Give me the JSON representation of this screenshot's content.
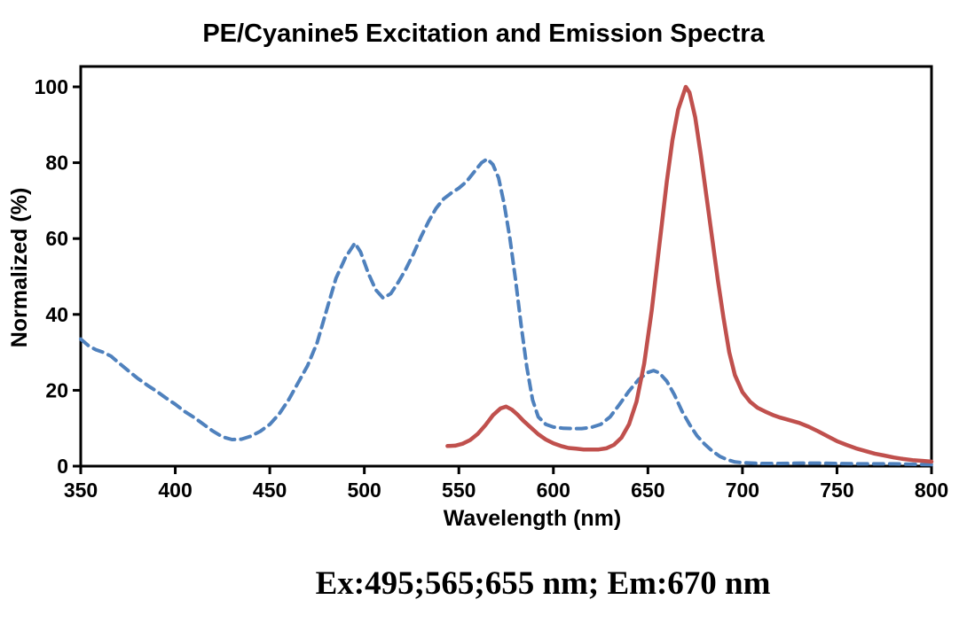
{
  "page": {
    "background": "#ffffff",
    "text_color": "#000000"
  },
  "annotation": "Ex:495;565;655 nm; Em:670 nm",
  "chart_data": {
    "type": "line",
    "title": "PE/Cyanine5 Excitation and Emission Spectra",
    "xlabel": "Wavelength (nm)",
    "ylabel": "Normalized (%)",
    "xlim": [
      350,
      800
    ],
    "ylim": [
      0,
      100
    ],
    "x_ticks": [
      350,
      400,
      450,
      500,
      550,
      600,
      650,
      700,
      750,
      800
    ],
    "y_ticks": [
      0,
      20,
      40,
      60,
      80,
      100
    ],
    "grid": false,
    "legend": "none",
    "frame": "full-box",
    "axis_color": "#000000",
    "series": [
      {
        "name": "excitation-spectrum",
        "style": "dashed",
        "color": "#4F81BD",
        "stroke_width": 4,
        "points": [
          [
            350,
            33.5
          ],
          [
            354,
            31.8
          ],
          [
            358,
            30.7
          ],
          [
            362,
            30.0
          ],
          [
            366,
            29.0
          ],
          [
            370,
            27.3
          ],
          [
            375,
            25.2
          ],
          [
            380,
            23.2
          ],
          [
            385,
            21.4
          ],
          [
            390,
            19.8
          ],
          [
            395,
            18.0
          ],
          [
            400,
            16.3
          ],
          [
            405,
            14.4
          ],
          [
            410,
            12.8
          ],
          [
            415,
            11.0
          ],
          [
            420,
            9.2
          ],
          [
            425,
            7.7
          ],
          [
            430,
            7.0
          ],
          [
            435,
            7.1
          ],
          [
            440,
            7.9
          ],
          [
            445,
            9.2
          ],
          [
            450,
            11.0
          ],
          [
            455,
            13.8
          ],
          [
            460,
            17.5
          ],
          [
            465,
            22.0
          ],
          [
            470,
            26.5
          ],
          [
            475,
            32.5
          ],
          [
            480,
            41.0
          ],
          [
            485,
            49.5
          ],
          [
            490,
            55.0
          ],
          [
            495,
            58.8
          ],
          [
            498,
            56.5
          ],
          [
            502,
            51.0
          ],
          [
            506,
            46.5
          ],
          [
            510,
            44.3
          ],
          [
            514,
            45.5
          ],
          [
            518,
            48.5
          ],
          [
            522,
            52.0
          ],
          [
            526,
            56.0
          ],
          [
            530,
            60.5
          ],
          [
            534,
            64.5
          ],
          [
            538,
            68.0
          ],
          [
            542,
            70.5
          ],
          [
            546,
            72.0
          ],
          [
            550,
            73.3
          ],
          [
            554,
            75.0
          ],
          [
            558,
            77.5
          ],
          [
            562,
            80.0
          ],
          [
            565,
            81.0
          ],
          [
            568,
            79.5
          ],
          [
            571,
            76.0
          ],
          [
            574,
            69.0
          ],
          [
            577,
            60.0
          ],
          [
            580,
            49.0
          ],
          [
            583,
            37.0
          ],
          [
            586,
            26.0
          ],
          [
            589,
            17.5
          ],
          [
            592,
            13.0
          ],
          [
            596,
            11.0
          ],
          [
            600,
            10.3
          ],
          [
            605,
            10.0
          ],
          [
            610,
            9.9
          ],
          [
            615,
            9.9
          ],
          [
            620,
            10.2
          ],
          [
            625,
            11.0
          ],
          [
            630,
            13.0
          ],
          [
            635,
            16.3
          ],
          [
            640,
            19.8
          ],
          [
            645,
            22.8
          ],
          [
            650,
            24.7
          ],
          [
            653,
            25.2
          ],
          [
            656,
            24.6
          ],
          [
            660,
            22.4
          ],
          [
            664,
            18.8
          ],
          [
            668,
            14.5
          ],
          [
            672,
            11.0
          ],
          [
            676,
            8.0
          ],
          [
            680,
            5.8
          ],
          [
            684,
            4.0
          ],
          [
            688,
            2.6
          ],
          [
            692,
            1.7
          ],
          [
            696,
            1.1
          ],
          [
            700,
            0.9
          ],
          [
            710,
            0.7
          ],
          [
            720,
            0.7
          ],
          [
            730,
            0.8
          ],
          [
            740,
            0.8
          ],
          [
            750,
            0.7
          ],
          [
            760,
            0.6
          ],
          [
            770,
            0.6
          ],
          [
            780,
            0.6
          ],
          [
            790,
            0.5
          ],
          [
            800,
            0.4
          ]
        ]
      },
      {
        "name": "emission-spectrum",
        "style": "solid",
        "color": "#C0504D",
        "stroke_width": 4.5,
        "points": [
          [
            544,
            5.3
          ],
          [
            548,
            5.4
          ],
          [
            552,
            5.9
          ],
          [
            556,
            6.9
          ],
          [
            560,
            8.5
          ],
          [
            564,
            10.8
          ],
          [
            568,
            13.4
          ],
          [
            572,
            15.2
          ],
          [
            575,
            15.7
          ],
          [
            578,
            14.9
          ],
          [
            581,
            13.6
          ],
          [
            584,
            12.0
          ],
          [
            588,
            10.2
          ],
          [
            592,
            8.4
          ],
          [
            596,
            7.0
          ],
          [
            600,
            6.0
          ],
          [
            604,
            5.3
          ],
          [
            608,
            4.8
          ],
          [
            612,
            4.6
          ],
          [
            616,
            4.4
          ],
          [
            620,
            4.4
          ],
          [
            624,
            4.4
          ],
          [
            628,
            4.7
          ],
          [
            632,
            5.6
          ],
          [
            636,
            7.5
          ],
          [
            640,
            11.0
          ],
          [
            644,
            17.0
          ],
          [
            648,
            27.0
          ],
          [
            652,
            41.0
          ],
          [
            656,
            58.0
          ],
          [
            660,
            75.0
          ],
          [
            663,
            86.0
          ],
          [
            666,
            94.0
          ],
          [
            668,
            97.0
          ],
          [
            670,
            100.0
          ],
          [
            672,
            98.5
          ],
          [
            675,
            92.0
          ],
          [
            678,
            82.0
          ],
          [
            681,
            71.0
          ],
          [
            684,
            60.0
          ],
          [
            687,
            49.0
          ],
          [
            690,
            39.0
          ],
          [
            693,
            30.0
          ],
          [
            696,
            24.0
          ],
          [
            700,
            19.5
          ],
          [
            704,
            17.0
          ],
          [
            708,
            15.4
          ],
          [
            712,
            14.4
          ],
          [
            716,
            13.5
          ],
          [
            720,
            12.8
          ],
          [
            725,
            12.1
          ],
          [
            730,
            11.4
          ],
          [
            735,
            10.4
          ],
          [
            740,
            9.2
          ],
          [
            745,
            7.9
          ],
          [
            750,
            6.6
          ],
          [
            755,
            5.6
          ],
          [
            760,
            4.7
          ],
          [
            765,
            4.0
          ],
          [
            770,
            3.3
          ],
          [
            775,
            2.8
          ],
          [
            780,
            2.3
          ],
          [
            785,
            1.9
          ],
          [
            790,
            1.6
          ],
          [
            795,
            1.4
          ],
          [
            800,
            1.2
          ]
        ]
      }
    ]
  }
}
